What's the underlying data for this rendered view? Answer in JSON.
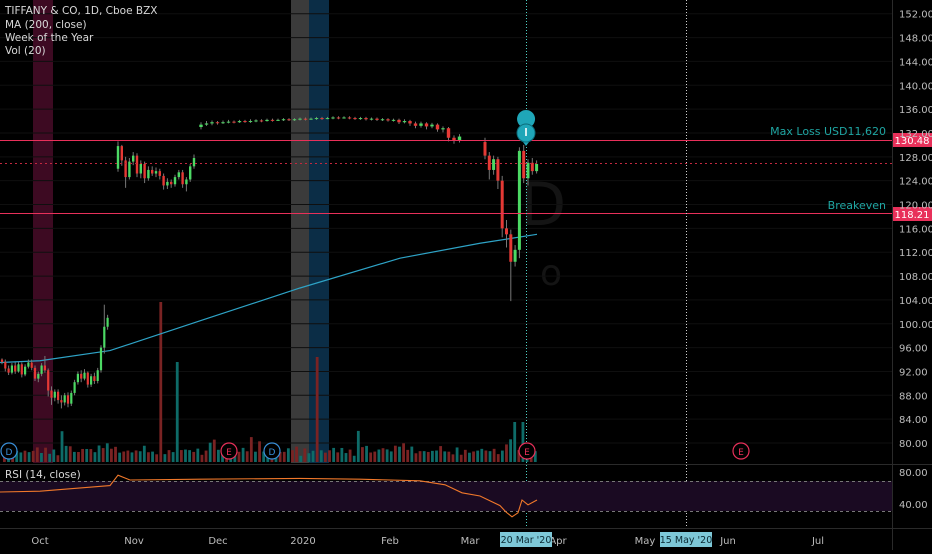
{
  "legend": {
    "title": "TIFFANY & CO, 1D, Cboe BZX",
    "lines": [
      "MA (200, close)",
      "Week of the Year",
      "Vol (20)"
    ]
  },
  "rsi_title": "RSI (14, close)",
  "price_axis": {
    "ticks": [
      80,
      84,
      88,
      92,
      96,
      100,
      104,
      108,
      112,
      116,
      120,
      124,
      128,
      132,
      136,
      140,
      144,
      148,
      152
    ],
    "labels": [
      "80.00",
      "84.00",
      "88.00",
      "92.00",
      "96.00",
      "100.00",
      "104.00",
      "108.00",
      "112.00",
      "116.00",
      "120.00",
      "124.00",
      "128.00",
      "132.00",
      "136.00",
      "140.00",
      "144.00",
      "148.00",
      "152.00"
    ]
  },
  "rsi_axis": {
    "ticks": [
      40,
      80
    ],
    "labels": [
      "40.00",
      "80.00"
    ]
  },
  "time_axis": {
    "labels": [
      "Oct",
      "Nov",
      "Dec",
      "2020",
      "Feb",
      "Mar",
      "Apr",
      "May",
      "Jun",
      "Jul"
    ],
    "highlight_start": "20 Mar '20",
    "highlight_end": "15 May '20"
  },
  "levels": [
    {
      "name": "Max Loss USD11,620",
      "price": 130.48,
      "label": "130.48",
      "color": "#e8305a"
    },
    {
      "name": "Breakeven",
      "price": 118.21,
      "label": "118.21",
      "color": "#e8305a"
    }
  ],
  "events": [
    {
      "letter": "D"
    },
    {
      "letter": "E"
    },
    {
      "letter": "D"
    },
    {
      "letter": "E"
    },
    {
      "letter": "E"
    }
  ],
  "chart_data": {
    "type": "candlestick",
    "title": "TIFFANY & CO, 1D, Cboe BZX",
    "ylim": [
      78,
      154
    ],
    "rsi_ylim": [
      20,
      85
    ],
    "series": [
      {
        "name": "MA (200, close)",
        "points": [
          [
            0,
            93.5
          ],
          [
            40,
            93.8
          ],
          [
            110,
            95.5
          ],
          [
            200,
            100.5
          ],
          [
            300,
            106
          ],
          [
            400,
            111
          ],
          [
            480,
            113.5
          ],
          [
            537,
            115
          ]
        ]
      }
    ],
    "candles_sep_nov": [
      [
        94,
        93.6,
        94.2,
        93.2
      ],
      [
        93.6,
        92.5,
        94,
        92
      ],
      [
        92.5,
        91.8,
        93,
        91.4
      ],
      [
        91.8,
        93,
        93.4,
        91.5
      ],
      [
        93,
        92,
        93.5,
        91.6
      ],
      [
        92,
        93.2,
        93.6,
        91.8
      ],
      [
        93.2,
        91.5,
        93.5,
        91
      ],
      [
        91.5,
        92.8,
        93.2,
        91.2
      ],
      [
        92.8,
        93.5,
        94,
        92.5
      ],
      [
        93.5,
        92.6,
        94,
        92.2
      ],
      [
        92.6,
        90.8,
        93,
        90.4
      ],
      [
        90.8,
        91.6,
        92,
        90.2
      ],
      [
        91.6,
        93,
        93.4,
        91.2
      ],
      [
        93,
        92.2,
        94.6,
        91.8
      ],
      [
        92.2,
        88.8,
        92.5,
        87.8
      ],
      [
        88.8,
        87.6,
        89.5,
        86.4
      ],
      [
        87.6,
        88.6,
        89,
        87
      ],
      [
        88.6,
        87.2,
        89,
        86.6
      ],
      [
        87.2,
        86.8,
        88,
        85.8
      ],
      [
        86.8,
        88,
        88.4,
        86.3
      ],
      [
        88,
        86.6,
        88.5,
        86
      ],
      [
        86.6,
        88.4,
        88.8,
        86.2
      ],
      [
        88.4,
        90.2,
        90.6,
        88
      ],
      [
        90.2,
        91.6,
        92,
        89.8
      ],
      [
        91.6,
        90.8,
        92.2,
        90.2
      ],
      [
        90.8,
        91.8,
        92.4,
        90.5
      ],
      [
        91.8,
        89.8,
        92,
        89.3
      ],
      [
        89.8,
        91.2,
        91.6,
        89.4
      ],
      [
        91.2,
        90.4,
        91.8,
        89.9
      ],
      [
        90.4,
        92.2,
        92.6,
        90
      ],
      [
        92.2,
        96,
        96.4,
        91.8
      ],
      [
        96,
        99.5,
        103.2,
        95
      ],
      [
        99.5,
        101,
        101.5,
        99
      ]
    ],
    "candles_nov_dec": [
      [
        126,
        129.8,
        130.6,
        125.5
      ],
      [
        129.8,
        127.4,
        130,
        126.5
      ],
      [
        127.4,
        124.6,
        128,
        122.8
      ],
      [
        124.6,
        127.2,
        127.8,
        124.2
      ],
      [
        127.2,
        128.2,
        128.8,
        126.6
      ],
      [
        128.2,
        125.2,
        128.6,
        124.6
      ],
      [
        125.2,
        126.8,
        127.4,
        124.4
      ],
      [
        126.8,
        124.4,
        127.2,
        123.6
      ],
      [
        124.4,
        125.8,
        126.4,
        124
      ],
      [
        125.8,
        125.2,
        126.4,
        124.8
      ],
      [
        125.2,
        125.6,
        126.2,
        124.6
      ],
      [
        125.6,
        124.8,
        126,
        124.2
      ],
      [
        124.8,
        123.2,
        125.2,
        122.5
      ],
      [
        123.2,
        123.8,
        124.4,
        122.6
      ],
      [
        123.8,
        123.4,
        124.2,
        122.8
      ],
      [
        123.4,
        124.6,
        125,
        123
      ],
      [
        124.6,
        125.4,
        125.8,
        124.2
      ],
      [
        125.4,
        123.4,
        125.8,
        122.8
      ],
      [
        123.4,
        124.2,
        124.6,
        122.2
      ],
      [
        124.2,
        126.4,
        126.8,
        123.8
      ],
      [
        126.4,
        127.8,
        128.4,
        126
      ]
    ],
    "candles_dec_mar": [
      [
        133,
        133.4,
        133.8,
        132.6
      ],
      [
        133.4,
        133.6,
        134,
        133.2
      ],
      [
        133.6,
        133.8,
        134.1,
        133.3
      ],
      [
        133.8,
        133.7,
        134,
        133.4
      ],
      [
        133.7,
        133.8,
        134.1,
        133.5
      ],
      [
        133.8,
        133.9,
        134.2,
        133.6
      ],
      [
        133.9,
        133.8,
        134.1,
        133.6
      ],
      [
        133.8,
        134,
        134.2,
        133.7
      ],
      [
        134,
        133.9,
        134.2,
        133.7
      ],
      [
        133.9,
        134,
        134.3,
        133.7
      ],
      [
        134,
        134.1,
        134.3,
        133.8
      ],
      [
        134.1,
        134,
        134.3,
        133.8
      ],
      [
        134,
        134.2,
        134.4,
        133.9
      ],
      [
        134.2,
        134.1,
        134.4,
        133.9
      ],
      [
        134.1,
        134.2,
        134.4,
        134
      ],
      [
        134.2,
        134.3,
        134.5,
        134
      ],
      [
        134.3,
        134.2,
        134.5,
        134
      ],
      [
        134.2,
        134.3,
        134.5,
        134
      ],
      [
        134.3,
        134.4,
        134.6,
        134.1
      ],
      [
        134.4,
        134.3,
        134.6,
        134.1
      ],
      [
        134.3,
        134.4,
        134.6,
        134.2
      ],
      [
        134.4,
        134.5,
        134.7,
        134.2
      ],
      [
        134.5,
        134.4,
        134.7,
        134.2
      ],
      [
        134.4,
        134.5,
        134.7,
        134.3
      ],
      [
        134.5,
        134.6,
        134.8,
        134.3
      ],
      [
        134.6,
        134.5,
        134.8,
        134.3
      ],
      [
        134.5,
        134.6,
        134.8,
        134.4
      ],
      [
        134.6,
        134.5,
        134.8,
        134.3
      ],
      [
        134.5,
        134.4,
        134.7,
        134.2
      ],
      [
        134.4,
        134.5,
        134.7,
        134.2
      ],
      [
        134.5,
        134.3,
        134.7,
        134.1
      ],
      [
        134.3,
        134.4,
        134.6,
        134.1
      ],
      [
        134.4,
        134.2,
        134.6,
        134
      ],
      [
        134.2,
        134.3,
        134.5,
        134
      ],
      [
        134.3,
        134.1,
        134.5,
        133.9
      ],
      [
        134.1,
        134.2,
        134.4,
        133.9
      ],
      [
        134.2,
        133.8,
        134.4,
        133.5
      ],
      [
        133.8,
        134,
        134.3,
        133.6
      ],
      [
        134,
        133.6,
        134.2,
        133.2
      ],
      [
        133.6,
        133.2,
        133.9,
        132.8
      ],
      [
        133.2,
        133.6,
        133.9,
        132.9
      ],
      [
        133.6,
        133.1,
        133.8,
        132.6
      ],
      [
        133.1,
        133.4,
        133.7,
        132.8
      ],
      [
        133.4,
        132.6,
        133.6,
        132.2
      ],
      [
        132.6,
        132.8,
        133.1,
        132.1
      ],
      [
        132.8,
        131.2,
        133,
        130.6
      ],
      [
        131.2,
        130.8,
        131.6,
        130.2
      ],
      [
        130.8,
        131.4,
        131.8,
        130.4
      ]
    ],
    "candles_mar_apr": [
      [
        130.5,
        128.2,
        131.2,
        127.6
      ],
      [
        128.2,
        125.8,
        128.8,
        124.2
      ],
      [
        125.8,
        127.6,
        128.2,
        125
      ],
      [
        127.6,
        124,
        128,
        122.6
      ],
      [
        124,
        116,
        124.8,
        114.5
      ],
      [
        116,
        115,
        117.4,
        112.8
      ],
      [
        115,
        110.4,
        115.8,
        103.8
      ],
      [
        110.4,
        112.4,
        113.2,
        109.6
      ],
      [
        112.4,
        129,
        129.6,
        111
      ],
      [
        129,
        124.4,
        130,
        123.6
      ],
      [
        124.4,
        127,
        127.6,
        123.2
      ],
      [
        127,
        125.6,
        127.8,
        125
      ],
      [
        125.6,
        126.8,
        127.4,
        125.2
      ]
    ],
    "volume": [
      1,
      1.3,
      1.4,
      1.1,
      1.2,
      1.2,
      1.1,
      1.3,
      1.5,
      1.2,
      1.4,
      1.3,
      1.2,
      1.1,
      3,
      2.2,
      1.6,
      1.2,
      1.1,
      1.4,
      1.6,
      1.3,
      1.4,
      1.6,
      2.4,
      1.8,
      2,
      1.5,
      1.2,
      1.1,
      1.3,
      1.1,
      1.2,
      1.4,
      1.6,
      1.5
    ],
    "rsi": [
      [
        0,
        55
      ],
      [
        40,
        56
      ],
      [
        110,
        63
      ],
      [
        118,
        76
      ],
      [
        130,
        70
      ],
      [
        200,
        71
      ],
      [
        300,
        72
      ],
      [
        360,
        71
      ],
      [
        420,
        69
      ],
      [
        445,
        64
      ],
      [
        462,
        54
      ],
      [
        480,
        50
      ],
      [
        500,
        38
      ],
      [
        506,
        30
      ],
      [
        512,
        24
      ],
      [
        518,
        29
      ],
      [
        522,
        45
      ],
      [
        528,
        39
      ],
      [
        537,
        45
      ]
    ]
  }
}
